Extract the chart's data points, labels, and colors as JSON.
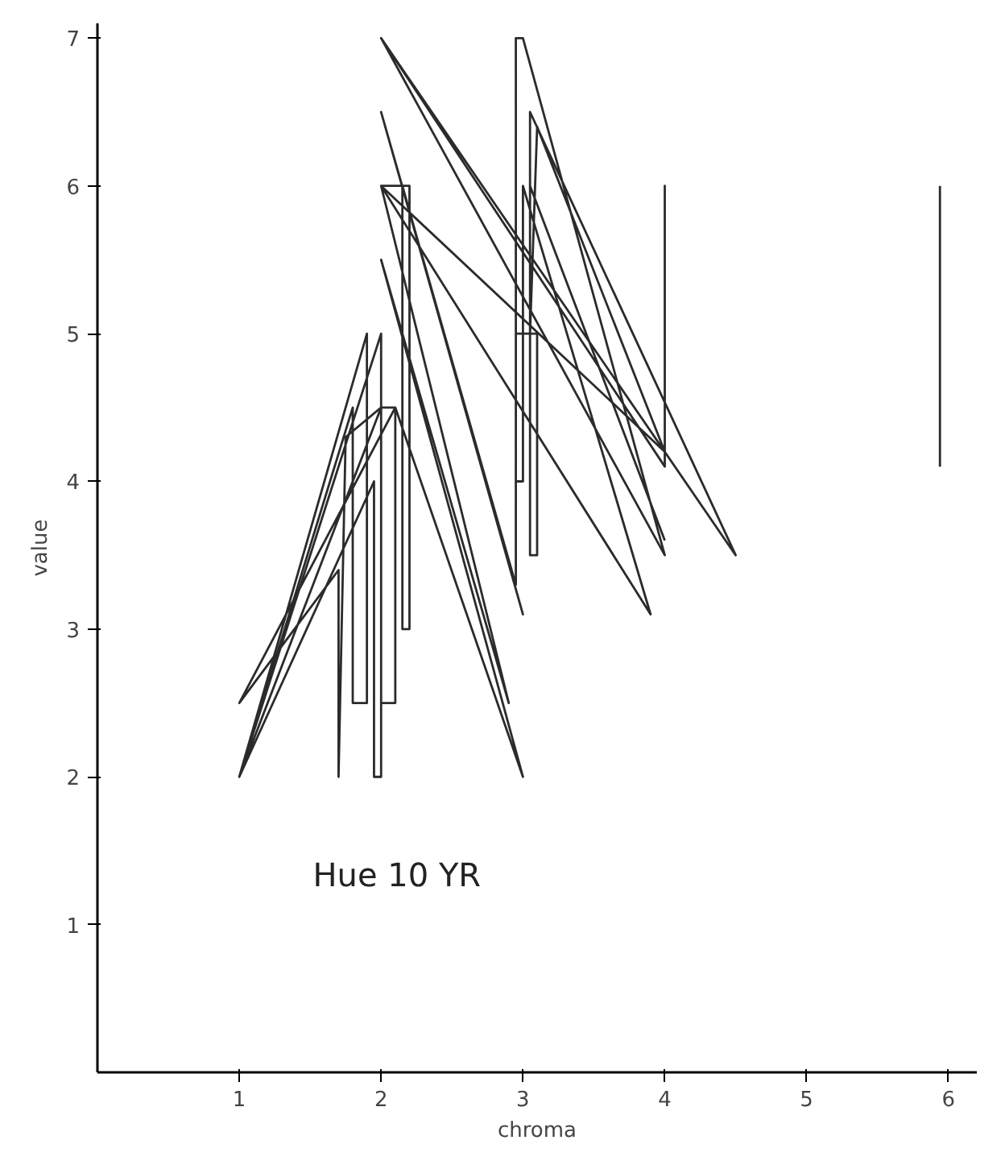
{
  "chart_data": {
    "type": "line",
    "xlabel": "chroma",
    "ylabel": "value",
    "annotations": [
      "Hue 10 YR"
    ],
    "xlim": [
      0,
      6.2
    ],
    "ylim": [
      0,
      7.1
    ],
    "xticks": [
      1,
      2,
      3,
      4,
      5,
      6
    ],
    "yticks": [
      1,
      2,
      3,
      4,
      5,
      6,
      7
    ],
    "grid": false,
    "marker": "none",
    "line_style": "solid",
    "series": [
      {
        "color": "#2b2b2b",
        "x": [
          1.0,
          1.9,
          1.9,
          1.8,
          1.8,
          1.0,
          2.0,
          2.0,
          1.95,
          1.95,
          1.0,
          2.0,
          2.0,
          2.1,
          2.1,
          1.0,
          1.7,
          1.7,
          1.75,
          2.0,
          2.1,
          3.0,
          2.0,
          2.9,
          2.0,
          2.2,
          2.2,
          2.15,
          2.15,
          3.0,
          2.0,
          2.95,
          2.95,
          3.0,
          4.0,
          2.0,
          4.0,
          4.0,
          4.0,
          2.0,
          4.5,
          3.05,
          3.05,
          3.1,
          4.0,
          2.0,
          3.9,
          3.0,
          3.0,
          2.95,
          2.95,
          3.1,
          3.1,
          3.05,
          3.05,
          4.0
        ],
        "values": [
          2.0,
          5.0,
          2.5,
          2.5,
          4.5,
          2.0,
          4.5,
          2.0,
          2.0,
          4.0,
          2.0,
          5.0,
          2.5,
          2.5,
          4.5,
          2.5,
          3.4,
          2.0,
          4.3,
          4.5,
          4.5,
          2.0,
          5.5,
          2.5,
          6.0,
          6.0,
          3.0,
          3.0,
          6.0,
          3.1,
          6.5,
          3.3,
          7.0,
          7.0,
          3.5,
          7.0,
          4.1,
          6.0,
          4.2,
          7.0,
          3.5,
          6.5,
          5.0,
          6.4,
          4.2,
          6.0,
          3.1,
          6.0,
          4.0,
          4.0,
          5.0,
          5.0,
          3.5,
          3.5,
          6.0,
          3.6
        ]
      },
      {
        "color": "#2b2b2b",
        "x": [
          5.94,
          5.94
        ],
        "values": [
          4.1,
          6.0
        ]
      }
    ]
  }
}
